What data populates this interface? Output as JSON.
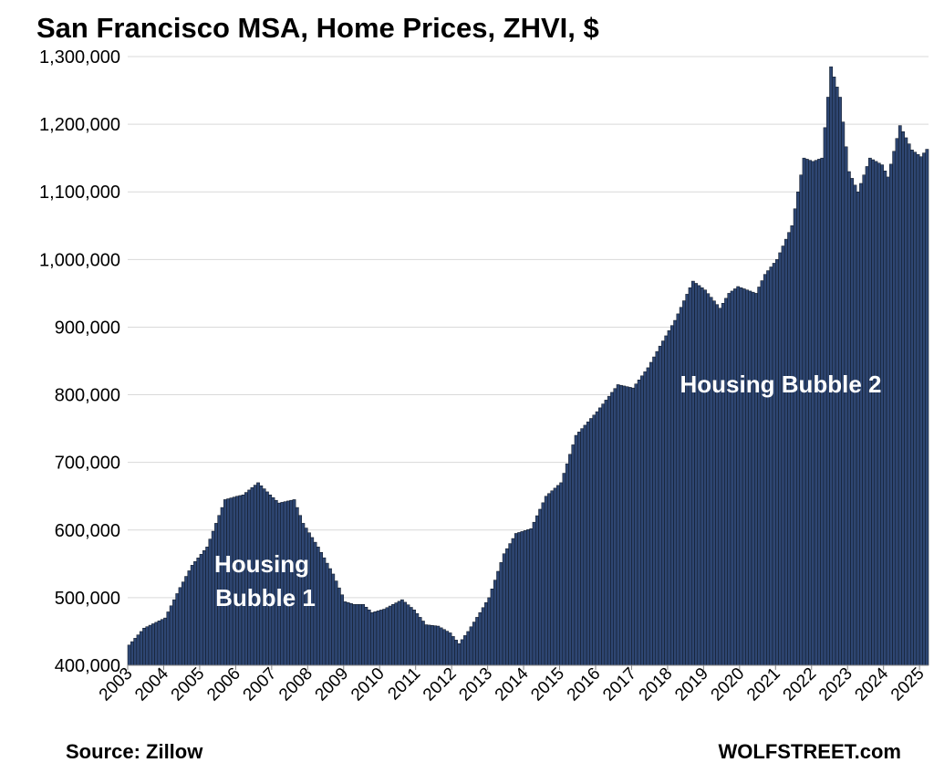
{
  "chart_data": {
    "type": "bar",
    "title": "San Francisco MSA, Home Prices, ZHVI, $",
    "xlabel": "",
    "ylabel": "",
    "ylim": [
      400000,
      1300000
    ],
    "yticks": [
      "400,000",
      "500,000",
      "600,000",
      "700,000",
      "800,000",
      "900,000",
      "1,000,000",
      "1,100,000",
      "1,200,000",
      "1,300,000"
    ],
    "grid": true,
    "bar_color": "#2e4672",
    "bar_edge_color": "#0d1520",
    "x_start": "2003-01",
    "x_end": "2025-03",
    "year_labels": [
      "2003",
      "2004",
      "2005",
      "2006",
      "2007",
      "2008",
      "2009",
      "2010",
      "2011",
      "2012",
      "2013",
      "2014",
      "2015",
      "2016",
      "2017",
      "2018",
      "2019",
      "2020",
      "2021",
      "2022",
      "2023",
      "2024",
      "2025"
    ],
    "anchors": [
      [
        "2003-01",
        430000
      ],
      [
        "2003-06",
        455000
      ],
      [
        "2004-01",
        470000
      ],
      [
        "2004-06",
        515000
      ],
      [
        "2004-10",
        548000
      ],
      [
        "2005-03",
        575000
      ],
      [
        "2005-09",
        645000
      ],
      [
        "2006-01",
        650000
      ],
      [
        "2006-03",
        652000
      ],
      [
        "2006-08",
        670000
      ],
      [
        "2006-12",
        652000
      ],
      [
        "2007-03",
        640000
      ],
      [
        "2007-08",
        645000
      ],
      [
        "2007-11",
        610000
      ],
      [
        "2008-04",
        575000
      ],
      [
        "2008-09",
        535000
      ],
      [
        "2009-01",
        494000
      ],
      [
        "2009-04",
        490000
      ],
      [
        "2009-07",
        490000
      ],
      [
        "2009-10",
        478000
      ],
      [
        "2010-02",
        483000
      ],
      [
        "2010-08",
        497000
      ],
      [
        "2010-12",
        482000
      ],
      [
        "2011-04",
        460000
      ],
      [
        "2011-08",
        458000
      ],
      [
        "2011-12",
        448000
      ],
      [
        "2012-03",
        432000
      ],
      [
        "2012-06",
        450000
      ],
      [
        "2012-10",
        478000
      ],
      [
        "2013-01",
        500000
      ],
      [
        "2013-06",
        565000
      ],
      [
        "2013-10",
        595000
      ],
      [
        "2014-03",
        602000
      ],
      [
        "2014-08",
        650000
      ],
      [
        "2015-01",
        670000
      ],
      [
        "2015-06",
        740000
      ],
      [
        "2016-01",
        775000
      ],
      [
        "2016-08",
        815000
      ],
      [
        "2017-01",
        810000
      ],
      [
        "2017-06",
        840000
      ],
      [
        "2017-10",
        872000
      ],
      [
        "2018-03",
        910000
      ],
      [
        "2018-09",
        968000
      ],
      [
        "2019-01",
        955000
      ],
      [
        "2019-06",
        928000
      ],
      [
        "2019-09",
        950000
      ],
      [
        "2019-12",
        960000
      ],
      [
        "2020-06",
        950000
      ],
      [
        "2020-09",
        978000
      ],
      [
        "2021-01",
        1000000
      ],
      [
        "2021-06",
        1050000
      ],
      [
        "2021-10",
        1150000
      ],
      [
        "2022-01",
        1145000
      ],
      [
        "2022-04",
        1150000
      ],
      [
        "2022-07",
        1285000
      ],
      [
        "2022-10",
        1240000
      ],
      [
        "2023-01",
        1130000
      ],
      [
        "2023-04",
        1100000
      ],
      [
        "2023-08",
        1150000
      ],
      [
        "2023-12",
        1140000
      ],
      [
        "2024-02",
        1122000
      ],
      [
        "2024-06",
        1198000
      ],
      [
        "2024-10",
        1162000
      ],
      [
        "2025-01",
        1152000
      ],
      [
        "2025-03",
        1163000
      ]
    ]
  },
  "annotations": {
    "bubble1_line1": "Housing",
    "bubble1_line2": "Bubble 1",
    "bubble2": "Housing Bubble 2"
  },
  "footer": {
    "source": "Source: Zillow",
    "brand": "WOLFSTREET.com"
  }
}
